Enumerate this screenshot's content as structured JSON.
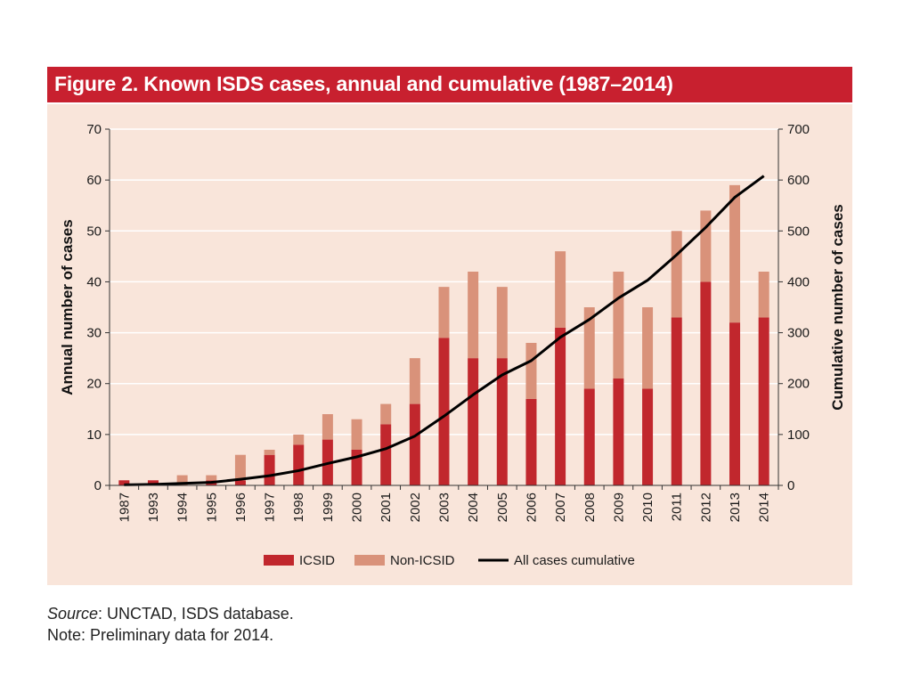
{
  "figure": {
    "title": "Figure 2. Known ISDS cases, annual and cumulative (1987–2014)"
  },
  "footer": {
    "source_label": "Source",
    "source_text": ": UNCTAD, ISDS database.",
    "note": "Note: Preliminary data for 2014."
  },
  "colors": {
    "title_bar": "#c8202f",
    "panel_background": "#f9e5da",
    "icsid": "#c1272d",
    "non_icsid": "#d9927a",
    "cumulative_line": "#000000",
    "gridline": "#ffffff"
  },
  "chart_data": {
    "type": "bar",
    "stacked": true,
    "categories": [
      "1987",
      "1993",
      "1994",
      "1995",
      "1996",
      "1997",
      "1998",
      "1999",
      "2000",
      "2001",
      "2002",
      "2003",
      "2004",
      "2005",
      "2006",
      "2007",
      "2008",
      "2009",
      "2010",
      "2011",
      "2012",
      "2013",
      "2014"
    ],
    "series": [
      {
        "name": "ICSID",
        "values": [
          1,
          1,
          0,
          1,
          1,
          6,
          8,
          9,
          7,
          12,
          16,
          29,
          25,
          25,
          17,
          31,
          19,
          21,
          19,
          33,
          40,
          32,
          33
        ]
      },
      {
        "name": "Non-ICSID",
        "values": [
          0,
          0,
          2,
          1,
          5,
          1,
          2,
          5,
          6,
          4,
          9,
          10,
          17,
          14,
          11,
          15,
          16,
          21,
          16,
          17,
          14,
          27,
          9
        ]
      }
    ],
    "line_series": {
      "name": "All cases cumulative",
      "axis": "right",
      "values": [
        1,
        2,
        4,
        6,
        12,
        19,
        29,
        43,
        56,
        72,
        97,
        136,
        178,
        217,
        245,
        291,
        326,
        368,
        403,
        453,
        507,
        566,
        608
      ]
    },
    "ylabel": "Annual number of cases",
    "ylabel_right": "Cumulative number of cases",
    "ylim": [
      0,
      70
    ],
    "yticks": [
      0,
      10,
      20,
      30,
      40,
      50,
      60,
      70
    ],
    "ylim_right": [
      0,
      700
    ],
    "yticks_right": [
      0,
      100,
      200,
      300,
      400,
      500,
      600,
      700
    ],
    "grid": true,
    "legend_position": "bottom"
  }
}
